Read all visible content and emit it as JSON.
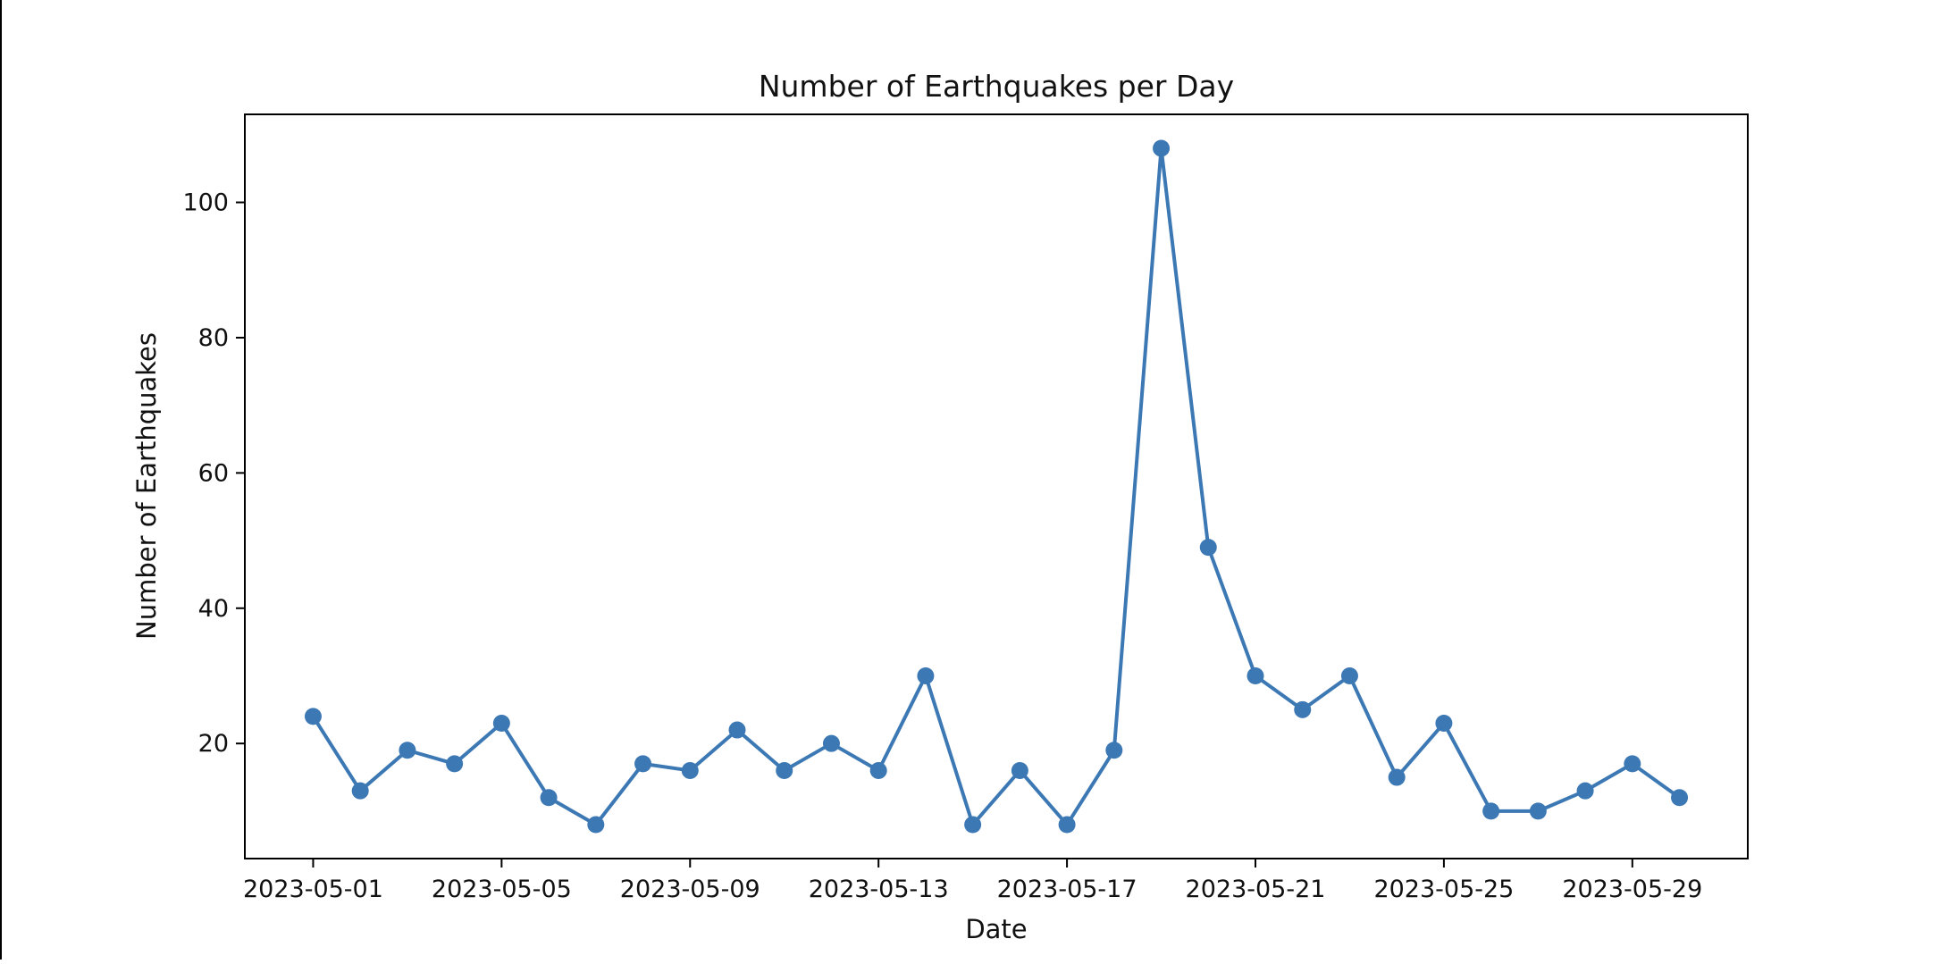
{
  "chart_data": {
    "type": "line",
    "title": "Number of Earthquakes per Day",
    "xlabel": "Date",
    "ylabel": "Number of Earthquakes",
    "x": [
      "2023-05-01",
      "2023-05-02",
      "2023-05-03",
      "2023-05-04",
      "2023-05-05",
      "2023-05-06",
      "2023-05-07",
      "2023-05-08",
      "2023-05-09",
      "2023-05-10",
      "2023-05-11",
      "2023-05-12",
      "2023-05-13",
      "2023-05-14",
      "2023-05-15",
      "2023-05-16",
      "2023-05-17",
      "2023-05-18",
      "2023-05-19",
      "2023-05-20",
      "2023-05-21",
      "2023-05-22",
      "2023-05-23",
      "2023-05-24",
      "2023-05-25",
      "2023-05-26",
      "2023-05-27",
      "2023-05-28",
      "2023-05-29",
      "2023-05-30"
    ],
    "series": [
      {
        "values": [
          24,
          13,
          19,
          17,
          23,
          12,
          8,
          17,
          16,
          22,
          16,
          20,
          16,
          30,
          8,
          16,
          8,
          19,
          108,
          49,
          30,
          25,
          30,
          15,
          23,
          10,
          10,
          13,
          17,
          12
        ]
      }
    ],
    "x_ticks": [
      "2023-05-01",
      "2023-05-05",
      "2023-05-09",
      "2023-05-13",
      "2023-05-17",
      "2023-05-21",
      "2023-05-25",
      "2023-05-29"
    ],
    "y_ticks": [
      20,
      40,
      60,
      80,
      100
    ],
    "xlim": [
      "2023-04-29.55",
      "2023-05-31.45"
    ],
    "ylim": [
      2.985,
      113.015
    ],
    "grid": false,
    "line_color": "#3c78b4",
    "marker": "circle"
  }
}
